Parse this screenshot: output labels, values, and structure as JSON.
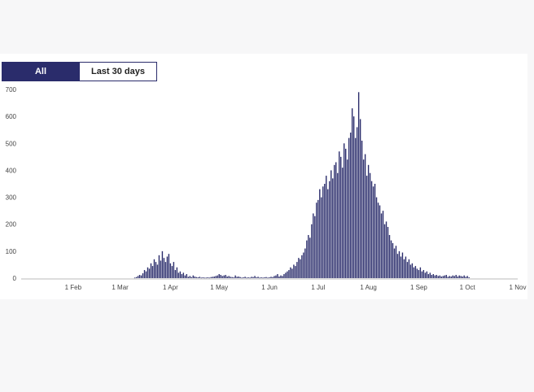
{
  "tabs": [
    {
      "label": "All",
      "active": true
    },
    {
      "label": "Last 30 days",
      "active": false
    }
  ],
  "colors": {
    "bar": "#2a2c6b",
    "tab_active": "#2a2c6b",
    "baseline": "#bbbbbb"
  },
  "chart_data": {
    "type": "bar",
    "title": "",
    "xlabel": "",
    "ylabel": "",
    "ylim": [
      0,
      700
    ],
    "yticks": [
      0,
      100,
      200,
      300,
      400,
      500,
      600,
      700
    ],
    "xticks": [
      {
        "label": "1 Feb",
        "day": 31
      },
      {
        "label": "1 Mar",
        "day": 60
      },
      {
        "label": "1 Apr",
        "day": 91
      },
      {
        "label": "1 May",
        "day": 121
      },
      {
        "label": "1 Jun",
        "day": 152
      },
      {
        "label": "1 Jul",
        "day": 182
      },
      {
        "label": "1 Aug",
        "day": 213
      },
      {
        "label": "1 Sep",
        "day": 244
      },
      {
        "label": "1 Oct",
        "day": 274
      },
      {
        "label": "1 Nov",
        "day": 305
      }
    ],
    "x_start": "1 Jan",
    "values": [
      0,
      0,
      0,
      0,
      0,
      0,
      0,
      0,
      0,
      0,
      0,
      0,
      0,
      0,
      0,
      0,
      0,
      0,
      0,
      0,
      0,
      0,
      0,
      0,
      0,
      0,
      0,
      0,
      0,
      0,
      0,
      0,
      0,
      0,
      0,
      0,
      0,
      0,
      0,
      0,
      0,
      0,
      0,
      0,
      0,
      0,
      0,
      0,
      0,
      0,
      0,
      0,
      0,
      0,
      0,
      0,
      0,
      0,
      0,
      0,
      0,
      0,
      0,
      0,
      0,
      0,
      0,
      0,
      0,
      0,
      2,
      4,
      8,
      12,
      10,
      18,
      30,
      25,
      40,
      35,
      55,
      45,
      70,
      60,
      50,
      85,
      65,
      100,
      75,
      60,
      80,
      90,
      55,
      45,
      60,
      30,
      40,
      20,
      25,
      15,
      20,
      10,
      15,
      5,
      8,
      4,
      10,
      6,
      4,
      3,
      5,
      2,
      3,
      2,
      2,
      3,
      2,
      4,
      5,
      6,
      8,
      10,
      15,
      12,
      8,
      10,
      12,
      6,
      8,
      5,
      4,
      3,
      10,
      5,
      6,
      4,
      2,
      3,
      5,
      2,
      3,
      2,
      5,
      4,
      8,
      3,
      5,
      2,
      3,
      2,
      3,
      4,
      2,
      3,
      5,
      4,
      8,
      10,
      15,
      6,
      10,
      8,
      15,
      20,
      25,
      30,
      40,
      35,
      50,
      45,
      60,
      75,
      70,
      85,
      95,
      110,
      140,
      160,
      150,
      200,
      240,
      230,
      280,
      290,
      330,
      300,
      340,
      350,
      380,
      330,
      360,
      400,
      370,
      420,
      430,
      390,
      470,
      450,
      410,
      500,
      480,
      440,
      520,
      540,
      630,
      600,
      520,
      560,
      690,
      590,
      510,
      440,
      460,
      380,
      420,
      390,
      360,
      340,
      350,
      300,
      280,
      270,
      240,
      250,
      200,
      210,
      190,
      160,
      140,
      130,
      110,
      120,
      90,
      100,
      80,
      95,
      70,
      80,
      60,
      70,
      50,
      55,
      40,
      45,
      35,
      30,
      40,
      25,
      30,
      20,
      25,
      15,
      20,
      12,
      15,
      10,
      12,
      8,
      10,
      6,
      8,
      10,
      12,
      5,
      8,
      6,
      10,
      8,
      12,
      6,
      10,
      8,
      6,
      10,
      5,
      8,
      3
    ]
  }
}
